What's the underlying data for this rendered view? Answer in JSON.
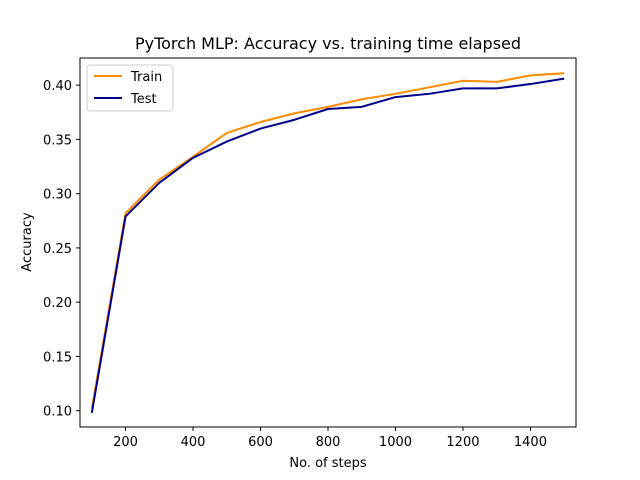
{
  "chart_data": {
    "type": "line",
    "title": "PyTorch MLP: Accuracy vs. training time elapsed",
    "xlabel": "No. of steps",
    "ylabel": "Accuracy",
    "xlim": [
      65,
      1535
    ],
    "ylim": [
      0.085,
      0.425
    ],
    "xticks": [
      200,
      400,
      600,
      800,
      1000,
      1200,
      1400
    ],
    "xtick_labels": [
      "200",
      "400",
      "600",
      "800",
      "1000",
      "1200",
      "1400"
    ],
    "yticks": [
      0.1,
      0.15,
      0.2,
      0.25,
      0.3,
      0.35,
      0.4
    ],
    "ytick_labels": [
      "0.10",
      "0.15",
      "0.20",
      "0.25",
      "0.30",
      "0.35",
      "0.40"
    ],
    "grid": false,
    "legend_position": "top-left",
    "x": [
      100,
      200,
      300,
      400,
      500,
      600,
      700,
      800,
      900,
      1000,
      1100,
      1200,
      1300,
      1400,
      1500
    ],
    "series": [
      {
        "name": "Train",
        "color": "#ff8c00",
        "values": [
          0.102,
          0.282,
          0.313,
          0.334,
          0.356,
          0.366,
          0.374,
          0.38,
          0.387,
          0.392,
          0.398,
          0.404,
          0.403,
          0.409,
          0.411
        ]
      },
      {
        "name": "Test",
        "color": "#00008b",
        "values": [
          0.098,
          0.279,
          0.31,
          0.333,
          0.348,
          0.36,
          0.368,
          0.378,
          0.38,
          0.389,
          0.392,
          0.397,
          0.397,
          0.401,
          0.406
        ]
      }
    ]
  }
}
